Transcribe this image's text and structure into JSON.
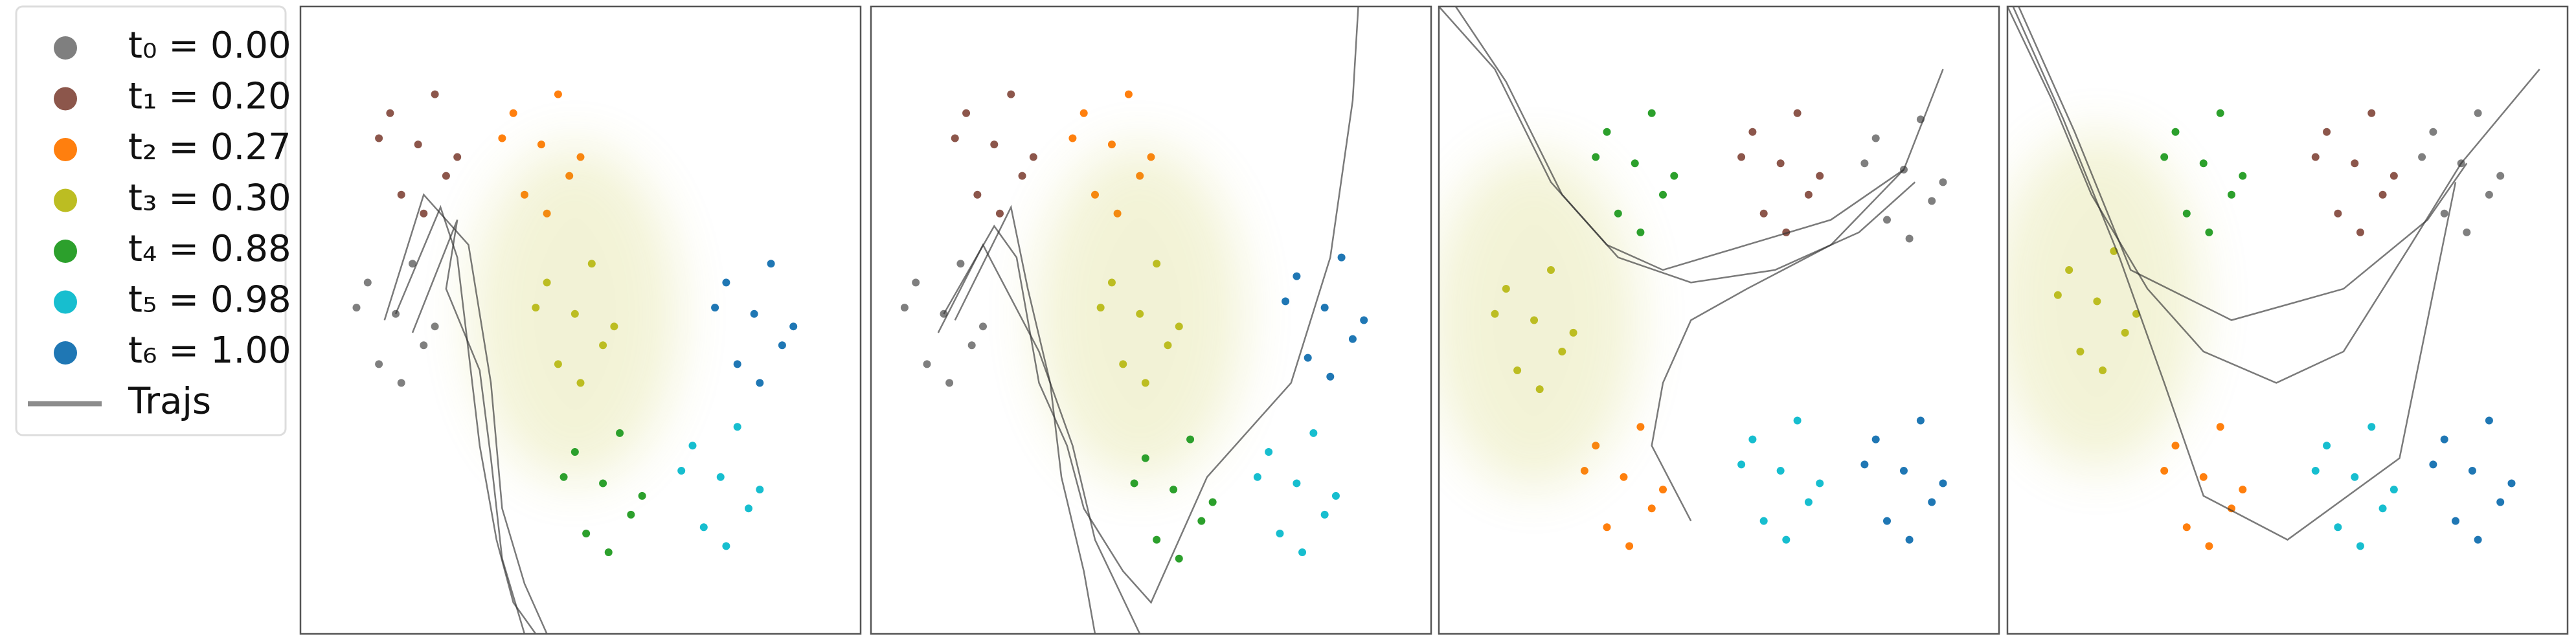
{
  "legend": {
    "items": [
      {
        "label": "t₀ = 0.00",
        "color": "#7f7f7f"
      },
      {
        "label": "t₁ = 0.20",
        "color": "#8c564b"
      },
      {
        "label": "t₂ = 0.27",
        "color": "#ff7f0e"
      },
      {
        "label": "t₃ = 0.30",
        "color": "#bcbd22"
      },
      {
        "label": "t₄ = 0.88",
        "color": "#2ca02c"
      },
      {
        "label": "t₅ = 0.98",
        "color": "#17becf"
      },
      {
        "label": "t₆ = 1.00",
        "color": "#1f77b4"
      }
    ],
    "trajectory_label": "Trajs",
    "trajectory_color": "#8c8c8c"
  },
  "chart_data": [
    {
      "type": "scatter",
      "xlim": [
        0,
        100
      ],
      "ylim": [
        0,
        100
      ],
      "series": [
        {
          "color": "#7f7f7f",
          "x": [
            17,
            12,
            22,
            14,
            20,
            10,
            24,
            18
          ],
          "values": [
            51,
            56,
            46,
            43,
            59,
            52,
            49,
            40
          ]
        },
        {
          "color": "#8c564b",
          "x": [
            21,
            16,
            26,
            18,
            24,
            14,
            28,
            22
          ],
          "values": [
            78,
            83,
            73,
            70,
            86,
            79,
            76,
            67
          ]
        },
        {
          "color": "#ff7f0e",
          "x": [
            43,
            38,
            48,
            40,
            46,
            36,
            50,
            44
          ],
          "values": [
            78,
            83,
            73,
            70,
            86,
            79,
            76,
            67
          ]
        },
        {
          "color": "#bcbd22",
          "x": [
            49,
            44,
            54,
            46,
            52,
            42,
            56,
            50
          ],
          "values": [
            51,
            56,
            46,
            43,
            59,
            52,
            49,
            40
          ]
        },
        {
          "color": "#2ca02c",
          "x": [
            54,
            49,
            59,
            51,
            57,
            47,
            61,
            55
          ],
          "values": [
            24,
            29,
            19,
            16,
            32,
            25,
            22,
            13
          ]
        },
        {
          "color": "#17becf",
          "x": [
            75,
            70,
            80,
            72,
            78,
            68,
            82,
            76
          ],
          "values": [
            25,
            30,
            20,
            17,
            33,
            26,
            23,
            14
          ]
        },
        {
          "color": "#1f77b4",
          "x": [
            81,
            76,
            86,
            78,
            84,
            74,
            88,
            82
          ],
          "values": [
            51,
            56,
            46,
            43,
            59,
            52,
            49,
            40
          ]
        }
      ],
      "trajectories": [
        {
          "x": [
            17,
            25,
            28,
            30,
            32,
            35,
            38,
            42
          ],
          "values": [
            51,
            68,
            60,
            45,
            30,
            15,
            5,
            0
          ]
        },
        {
          "x": [
            15,
            22,
            30,
            34,
            36,
            40,
            44
          ],
          "values": [
            50,
            70,
            62,
            40,
            20,
            8,
            0
          ]
        },
        {
          "x": [
            20,
            28,
            26,
            32,
            34,
            36,
            40
          ],
          "values": [
            48,
            66,
            55,
            42,
            28,
            12,
            0
          ]
        }
      ]
    },
    {
      "type": "scatter",
      "xlim": [
        0,
        100
      ],
      "ylim": [
        0,
        100
      ],
      "series": [
        {
          "color": "#7f7f7f",
          "x": [
            13,
            8,
            18,
            10,
            16,
            6,
            20,
            14
          ],
          "values": [
            51,
            56,
            46,
            43,
            59,
            52,
            49,
            40
          ]
        },
        {
          "color": "#8c564b",
          "x": [
            22,
            17,
            27,
            19,
            25,
            15,
            29,
            23
          ],
          "values": [
            78,
            83,
            73,
            70,
            86,
            79,
            76,
            67
          ]
        },
        {
          "color": "#ff7f0e",
          "x": [
            43,
            38,
            48,
            40,
            46,
            36,
            50,
            44
          ],
          "values": [
            78,
            83,
            73,
            70,
            86,
            79,
            76,
            67
          ]
        },
        {
          "color": "#bcbd22",
          "x": [
            48,
            43,
            53,
            45,
            51,
            41,
            55,
            49
          ],
          "values": [
            51,
            56,
            46,
            43,
            59,
            52,
            49,
            40
          ]
        },
        {
          "color": "#2ca02c",
          "x": [
            54,
            49,
            59,
            51,
            57,
            47,
            61,
            55
          ],
          "values": [
            23,
            28,
            18,
            15,
            31,
            24,
            21,
            12
          ]
        },
        {
          "color": "#17becf",
          "x": [
            76,
            71,
            81,
            73,
            79,
            69,
            83,
            77
          ],
          "values": [
            24,
            29,
            19,
            16,
            32,
            25,
            22,
            13
          ]
        },
        {
          "color": "#1f77b4",
          "x": [
            81,
            76,
            86,
            78,
            84,
            74,
            88,
            82
          ],
          "values": [
            52,
            57,
            47,
            44,
            60,
            53,
            50,
            41
          ]
        }
      ],
      "trajectories": [
        {
          "x": [
            13,
            22,
            26,
            30,
            35,
            38,
            45,
            50,
            60,
            70,
            75,
            82,
            86,
            87
          ],
          "values": [
            51,
            65,
            60,
            40,
            30,
            20,
            10,
            5,
            25,
            35,
            40,
            60,
            85,
            100
          ]
        },
        {
          "x": [
            15,
            25,
            28,
            32,
            34,
            38,
            40
          ],
          "values": [
            50,
            68,
            55,
            40,
            25,
            10,
            0
          ]
        },
        {
          "x": [
            12,
            20,
            30,
            36,
            40,
            48
          ],
          "values": [
            48,
            62,
            45,
            30,
            15,
            0
          ]
        }
      ]
    },
    {
      "type": "scatter",
      "xlim": [
        0,
        100
      ],
      "ylim": [
        0,
        100
      ],
      "series": [
        {
          "color": "#7f7f7f",
          "x": [
            83,
            78,
            88,
            80,
            86,
            76,
            90,
            84
          ],
          "values": [
            74,
            79,
            69,
            66,
            82,
            75,
            72,
            63
          ]
        },
        {
          "color": "#8c564b",
          "x": [
            61,
            56,
            66,
            58,
            64,
            54,
            68,
            62
          ],
          "values": [
            75,
            80,
            70,
            67,
            83,
            76,
            73,
            64
          ]
        },
        {
          "color": "#ff7f0e",
          "x": [
            33,
            28,
            38,
            30,
            36,
            26,
            40,
            34
          ],
          "values": [
            25,
            30,
            20,
            17,
            33,
            26,
            23,
            14
          ]
        },
        {
          "color": "#bcbd22",
          "x": [
            17,
            12,
            22,
            14,
            20,
            10,
            24,
            18
          ],
          "values": [
            50,
            55,
            45,
            42,
            58,
            51,
            48,
            39
          ]
        },
        {
          "color": "#2ca02c",
          "x": [
            35,
            30,
            40,
            32,
            38,
            28,
            42,
            36
          ],
          "values": [
            75,
            80,
            70,
            67,
            83,
            76,
            73,
            64
          ]
        },
        {
          "color": "#17becf",
          "x": [
            61,
            56,
            66,
            58,
            64,
            54,
            68,
            62
          ],
          "values": [
            26,
            31,
            21,
            18,
            34,
            27,
            24,
            15
          ]
        },
        {
          "color": "#1f77b4",
          "x": [
            83,
            78,
            88,
            80,
            86,
            76,
            90,
            84
          ],
          "values": [
            26,
            31,
            21,
            18,
            34,
            27,
            24,
            15
          ]
        }
      ],
      "trajectories": [
        {
          "x": [
            0,
            10,
            20,
            30,
            40,
            55,
            70,
            83,
            90
          ],
          "values": [
            100,
            90,
            72,
            62,
            58,
            62,
            66,
            74,
            90
          ]
        },
        {
          "x": [
            3,
            12,
            22,
            32,
            45,
            60,
            75,
            85
          ],
          "values": [
            100,
            88,
            70,
            60,
            56,
            58,
            64,
            72
          ]
        },
        {
          "x": [
            83,
            70,
            55,
            45,
            40,
            38,
            45
          ],
          "values": [
            74,
            62,
            55,
            50,
            40,
            30,
            18
          ]
        }
      ]
    },
    {
      "type": "scatter",
      "xlim": [
        0,
        100
      ],
      "ylim": [
        0,
        100
      ],
      "series": [
        {
          "color": "#7f7f7f",
          "x": [
            81,
            76,
            86,
            78,
            84,
            74,
            88,
            82
          ],
          "values": [
            75,
            80,
            70,
            67,
            83,
            76,
            73,
            64
          ]
        },
        {
          "color": "#8c564b",
          "x": [
            62,
            57,
            67,
            59,
            65,
            55,
            69,
            63
          ],
          "values": [
            75,
            80,
            70,
            67,
            83,
            76,
            73,
            64
          ]
        },
        {
          "color": "#ff7f0e",
          "x": [
            35,
            30,
            40,
            32,
            38,
            28,
            42,
            36
          ],
          "values": [
            25,
            30,
            20,
            17,
            33,
            26,
            23,
            14
          ]
        },
        {
          "color": "#bcbd22",
          "x": [
            16,
            11,
            21,
            13,
            19,
            9,
            23,
            17
          ],
          "values": [
            53,
            58,
            48,
            45,
            61,
            54,
            51,
            42
          ]
        },
        {
          "color": "#2ca02c",
          "x": [
            35,
            30,
            40,
            32,
            38,
            28,
            42,
            36
          ],
          "values": [
            75,
            80,
            70,
            67,
            83,
            76,
            73,
            64
          ]
        },
        {
          "color": "#17becf",
          "x": [
            62,
            57,
            67,
            59,
            65,
            55,
            69,
            63
          ],
          "values": [
            25,
            30,
            20,
            17,
            33,
            26,
            23,
            14
          ]
        },
        {
          "color": "#1f77b4",
          "x": [
            83,
            78,
            88,
            80,
            86,
            76,
            90,
            84
          ],
          "values": [
            26,
            31,
            21,
            18,
            34,
            27,
            24,
            15
          ]
        }
      ],
      "trajectories": [
        {
          "x": [
            0,
            8,
            15,
            25,
            35,
            48,
            60,
            72,
            81,
            95
          ],
          "values": [
            100,
            85,
            70,
            55,
            45,
            40,
            45,
            62,
            75,
            90
          ]
        },
        {
          "x": [
            1,
            10,
            20,
            28,
            35,
            50,
            70,
            80
          ],
          "values": [
            100,
            82,
            60,
            40,
            22,
            15,
            28,
            72
          ]
        },
        {
          "x": [
            2,
            12,
            22,
            40,
            60,
            75,
            82
          ],
          "values": [
            100,
            80,
            58,
            50,
            55,
            66,
            75
          ]
        }
      ]
    }
  ]
}
